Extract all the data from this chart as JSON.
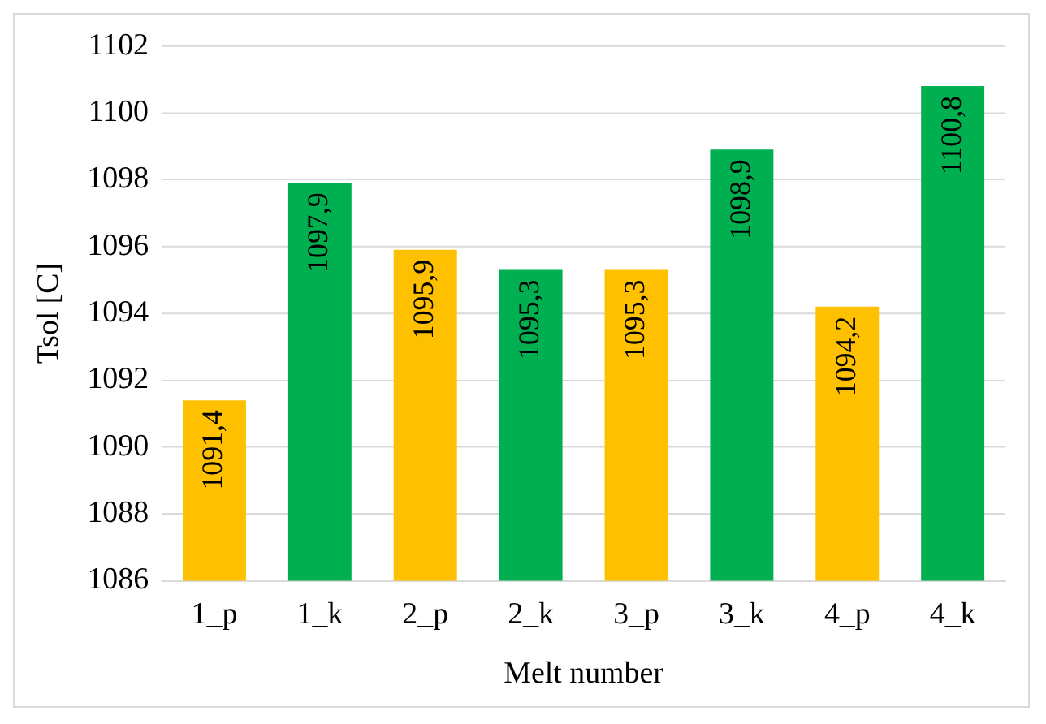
{
  "chart_data": {
    "type": "bar",
    "xlabel": "Melt number",
    "ylabel": "Tsol [C]",
    "categories": [
      "1_p",
      "1_k",
      "2_p",
      "2_k",
      "3_p",
      "3_k",
      "4_p",
      "4_k"
    ],
    "values": [
      1091.4,
      1097.9,
      1095.9,
      1095.3,
      1095.3,
      1098.9,
      1094.2,
      1100.8
    ],
    "colors": [
      "#ffc000",
      "#00b050",
      "#ffc000",
      "#00b050",
      "#ffc000",
      "#00b050",
      "#ffc000",
      "#00b050"
    ],
    "value_labels": [
      "1091,4",
      "1097,9",
      "1095,9",
      "1095,3",
      "1095,3",
      "1098,9",
      "1094,2",
      "1100,8"
    ],
    "ylim": [
      1086,
      1102
    ],
    "yticks": [
      1086,
      1088,
      1090,
      1092,
      1094,
      1096,
      1098,
      1100,
      1102
    ],
    "grid": "y",
    "legend": false
  }
}
